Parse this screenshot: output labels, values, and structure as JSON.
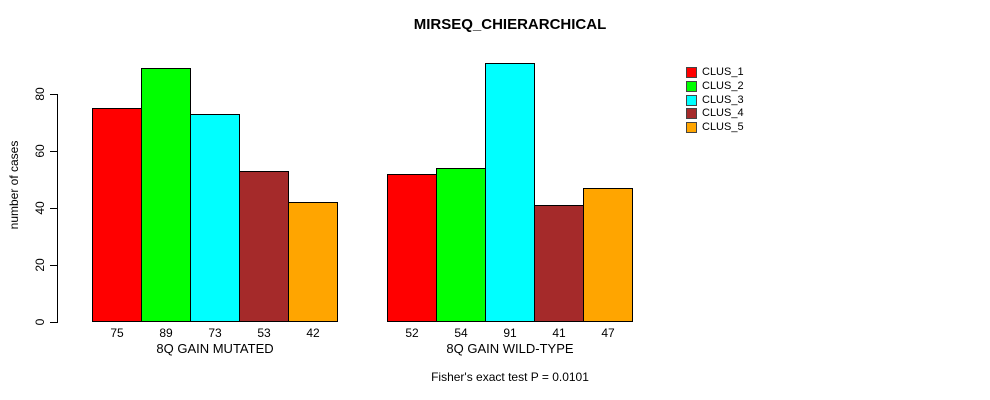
{
  "chart_data": {
    "type": "bar",
    "title": "MIRSEQ_CHIERARCHICAL",
    "ylabel": "number of cases",
    "xlabel": "",
    "caption": "Fisher's exact test P = 0.0101",
    "categories": [
      "8Q GAIN MUTATED",
      "8Q GAIN WILD-TYPE"
    ],
    "series": [
      {
        "name": "CLUS_1",
        "color": "#ff0000",
        "values": [
          75,
          52
        ]
      },
      {
        "name": "CLUS_2",
        "color": "#00ff00",
        "values": [
          89,
          54
        ]
      },
      {
        "name": "CLUS_3",
        "color": "#00ffff",
        "values": [
          73,
          91
        ]
      },
      {
        "name": "CLUS_4",
        "color": "#a52a2a",
        "values": [
          53,
          41
        ]
      },
      {
        "name": "CLUS_5",
        "color": "#ffa500",
        "values": [
          42,
          47
        ]
      }
    ],
    "yticks": [
      0,
      20,
      40,
      60,
      80
    ],
    "ylim": [
      0,
      95
    ],
    "grid": false,
    "bar_value_labels_shown": true,
    "legend_position": "right"
  }
}
